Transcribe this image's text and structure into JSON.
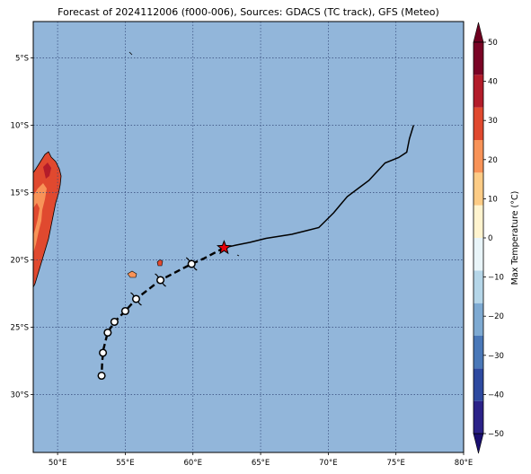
{
  "title": "Forecast of 2024112006 (f000-006), Sources: GDACS (TC track), GFS (Meteo)",
  "map": {
    "lon_range": [
      48.2,
      80.0
    ],
    "lat_range": [
      -34.3,
      -2.3
    ],
    "lon_ticks": [
      {
        "value": 50,
        "label": "50°E"
      },
      {
        "value": 55,
        "label": "55°E"
      },
      {
        "value": 60,
        "label": "60°E"
      },
      {
        "value": 65,
        "label": "65°E"
      },
      {
        "value": 70,
        "label": "70°E"
      },
      {
        "value": 75,
        "label": "75°E"
      },
      {
        "value": 80,
        "label": "80°E"
      }
    ],
    "lat_ticks": [
      {
        "value": -5,
        "label": "5°S"
      },
      {
        "value": -10,
        "label": "10°S"
      },
      {
        "value": -15,
        "label": "15°S"
      },
      {
        "value": -20,
        "label": "20°S"
      },
      {
        "value": -25,
        "label": "25°S"
      },
      {
        "value": -30,
        "label": "30°S"
      }
    ],
    "ocean_color": "#92b6da",
    "gridlines": true
  },
  "colorbar": {
    "label": "Max Temperature (°C)",
    "min": -50,
    "max": 50,
    "ticks": [
      {
        "value": 50,
        "label": "50"
      },
      {
        "value": 40,
        "label": "40"
      },
      {
        "value": 30,
        "label": "30"
      },
      {
        "value": 20,
        "label": "20"
      },
      {
        "value": 10,
        "label": "10"
      },
      {
        "value": 0,
        "label": "0"
      },
      {
        "value": -10,
        "label": "−10"
      },
      {
        "value": -20,
        "label": "−20"
      },
      {
        "value": -30,
        "label": "−30"
      },
      {
        "value": -40,
        "label": "−40"
      },
      {
        "value": -50,
        "label": "−50"
      }
    ],
    "bands": [
      "#2b2288",
      "#2e4aa0",
      "#4a78b8",
      "#7eaad2",
      "#b5d6e8",
      "#e9f5f9",
      "#fff4cf",
      "#fdcc86",
      "#f89358",
      "#e0492f",
      "#b31c2a",
      "#7a0325"
    ],
    "extend_low_color": "#1a0f70",
    "extend_high_color": "#6f0020"
  },
  "track": {
    "past": [
      {
        "lon": 76.3,
        "lat": -10.0
      },
      {
        "lon": 76.0,
        "lat": -11.0
      },
      {
        "lon": 75.8,
        "lat": -12.0
      },
      {
        "lon": 75.2,
        "lat": -12.4
      },
      {
        "lon": 74.2,
        "lat": -12.8
      },
      {
        "lon": 73.0,
        "lat": -14.1
      },
      {
        "lon": 72.2,
        "lat": -14.7
      },
      {
        "lon": 71.4,
        "lat": -15.3
      },
      {
        "lon": 70.9,
        "lat": -15.9
      },
      {
        "lon": 70.4,
        "lat": -16.5
      },
      {
        "lon": 69.8,
        "lat": -17.1
      },
      {
        "lon": 69.3,
        "lat": -17.6
      },
      {
        "lon": 68.5,
        "lat": -17.8
      },
      {
        "lon": 67.3,
        "lat": -18.1
      },
      {
        "lon": 65.4,
        "lat": -18.4
      },
      {
        "lon": 64.2,
        "lat": -18.7
      },
      {
        "lon": 63.2,
        "lat": -18.9
      },
      {
        "lon": 62.3,
        "lat": -19.1
      }
    ],
    "current": {
      "lon": 62.3,
      "lat": -19.1
    },
    "forecast": [
      {
        "lon": 62.3,
        "lat": -19.1
      },
      {
        "lon": 60.8,
        "lat": -19.9
      },
      {
        "lon": 59.9,
        "lat": -20.3
      },
      {
        "lon": 57.6,
        "lat": -21.5
      },
      {
        "lon": 55.8,
        "lat": -22.9
      },
      {
        "lon": 55.0,
        "lat": -23.8
      },
      {
        "lon": 54.2,
        "lat": -24.6
      },
      {
        "lon": 53.7,
        "lat": -25.4
      },
      {
        "lon": 53.4,
        "lat": -26.6
      },
      {
        "lon": 53.3,
        "lat": -27.5
      },
      {
        "lon": 53.25,
        "lat": -28.6
      }
    ],
    "cyclone_symbols": [
      {
        "lon": 59.9,
        "lat": -20.3
      },
      {
        "lon": 57.6,
        "lat": -21.5
      },
      {
        "lon": 55.8,
        "lat": -22.9
      }
    ],
    "points": [
      {
        "lon": 59.9,
        "lat": -20.3
      },
      {
        "lon": 57.6,
        "lat": -21.5
      },
      {
        "lon": 55.8,
        "lat": -22.9
      },
      {
        "lon": 55.0,
        "lat": -23.8
      },
      {
        "lon": 54.2,
        "lat": -24.6
      },
      {
        "lon": 53.7,
        "lat": -25.4
      },
      {
        "lon": 53.35,
        "lat": -26.9
      },
      {
        "lon": 53.25,
        "lat": -28.6
      }
    ]
  }
}
